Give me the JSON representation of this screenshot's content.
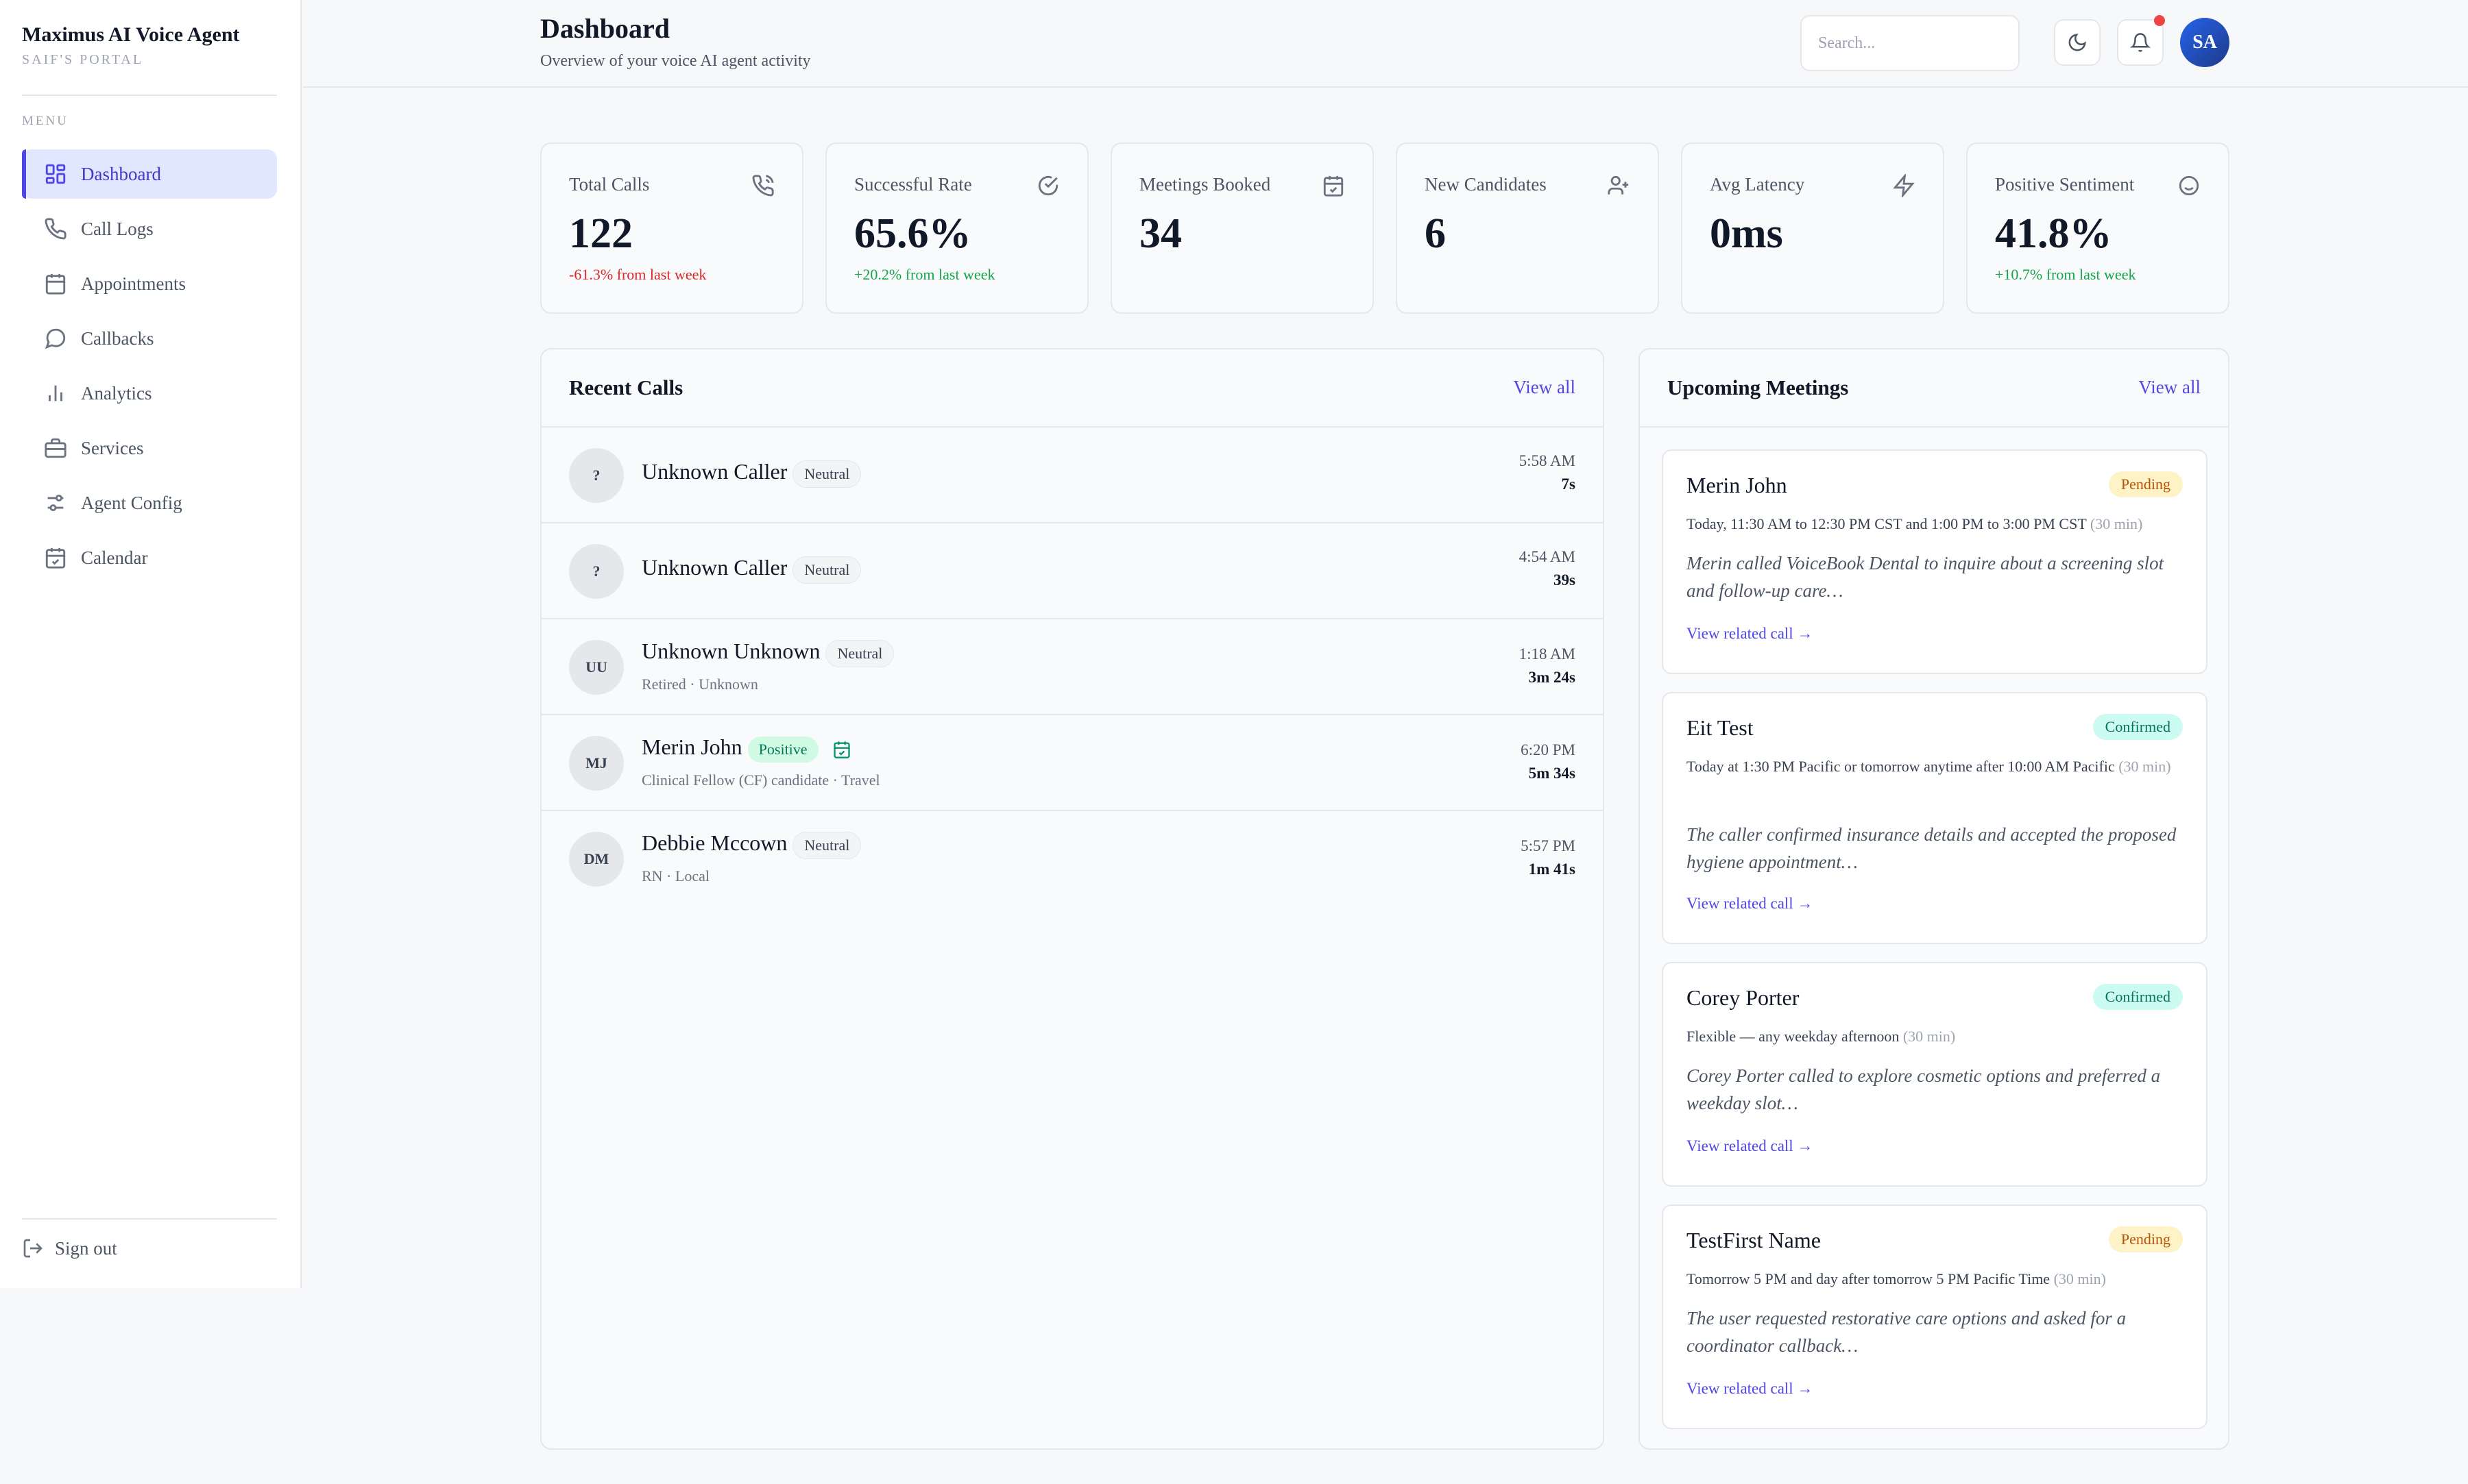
{
  "brand": {
    "title": "Maximus AI Voice Agent",
    "subtitle": "SAIF'S PORTAL"
  },
  "sidebar": {
    "menu_label": "MENU",
    "items": [
      {
        "label": "Dashboard",
        "icon": "dashboard-icon",
        "active": true
      },
      {
        "label": "Call Logs",
        "icon": "phone-icon"
      },
      {
        "label": "Appointments",
        "icon": "calendar-icon"
      },
      {
        "label": "Callbacks",
        "icon": "chat-icon"
      },
      {
        "label": "Analytics",
        "icon": "bar-chart-icon"
      },
      {
        "label": "Services",
        "icon": "briefcase-icon"
      },
      {
        "label": "Agent Config",
        "icon": "sliders-icon"
      },
      {
        "label": "Calendar",
        "icon": "calendar-check-icon"
      }
    ],
    "signout_label": "Sign out"
  },
  "header": {
    "title": "Dashboard",
    "subtitle": "Overview of your voice AI agent activity",
    "search_placeholder": "Search...",
    "avatar_initials": "SA"
  },
  "stats": [
    {
      "label": "Total Calls",
      "value": "122",
      "change": "-61.3% from last week",
      "trend": "negative",
      "icon": "phone-call-icon"
    },
    {
      "label": "Successful Rate",
      "value": "65.6%",
      "change": "+20.2% from last week",
      "trend": "positive",
      "icon": "check-circle-icon"
    },
    {
      "label": "Meetings Booked",
      "value": "34",
      "change": "",
      "trend": "none",
      "icon": "calendar-check-icon"
    },
    {
      "label": "New Candidates",
      "value": "6",
      "change": "",
      "trend": "none",
      "icon": "user-plus-icon"
    },
    {
      "label": "Avg Latency",
      "value": "0ms",
      "change": "",
      "trend": "none",
      "icon": "lightning-icon"
    },
    {
      "label": "Positive Sentiment",
      "value": "41.8%",
      "change": "+10.7% from last week",
      "trend": "positive",
      "icon": "smile-icon"
    }
  ],
  "recent_calls": {
    "title": "Recent Calls",
    "view_all": "View all",
    "rows": [
      {
        "initials": "?",
        "name": "Unknown Caller",
        "sentiment": "Neutral",
        "sub": "",
        "time": "5:58 AM",
        "duration": "7s"
      },
      {
        "initials": "?",
        "name": "Unknown Caller",
        "sentiment": "Neutral",
        "sub": "",
        "time": "4:54 AM",
        "duration": "39s"
      },
      {
        "initials": "UU",
        "name": "Unknown Unknown",
        "sentiment": "Neutral",
        "sub": "Retired · Unknown",
        "time": "1:18 AM",
        "duration": "3m 24s"
      },
      {
        "initials": "MJ",
        "name": "Merin John",
        "sentiment": "Positive",
        "sub": "Clinical Fellow (CF) candidate · Travel",
        "time": "6:20 PM",
        "duration": "5m 34s",
        "booked": true
      },
      {
        "initials": "DM",
        "name": "Debbie Mccown",
        "sentiment": "Neutral",
        "sub": "RN · Local",
        "time": "5:57 PM",
        "duration": "1m 41s"
      }
    ]
  },
  "upcoming_meetings": {
    "title": "Upcoming Meetings",
    "view_all": "View all",
    "link_label": "View related call →",
    "cards": [
      {
        "name": "Merin John",
        "status": "Pending",
        "time": "Today, 11:30 AM to 12:30 PM CST and 1:00 PM to 3:00 PM CST",
        "duration": "(30 min)",
        "summary": "Merin called VoiceBook Dental to inquire about a screening slot and follow-up care…"
      },
      {
        "name": "Eit Test",
        "status": "Confirmed",
        "time": "Today at 1:30 PM Pacific or tomorrow anytime after 10:00 AM Pacific",
        "duration": "(30 min)",
        "summary": "The caller confirmed insurance details and accepted the proposed hygiene appointment…"
      },
      {
        "name": "Corey Porter",
        "status": "Confirmed",
        "time": "Flexible — any weekday afternoon",
        "duration": "(30 min)",
        "summary": "Corey Porter called to explore cosmetic options and preferred a weekday slot…"
      },
      {
        "name": "TestFirst Name",
        "status": "Pending",
        "time": "Tomorrow 5 PM and day after tomorrow 5 PM Pacific Time",
        "duration": "(30 min)",
        "summary": "The user requested restorative care options and asked for a coordinator callback…"
      }
    ]
  },
  "colors": {
    "accent": "#4f46e5",
    "negative": "#dc2626",
    "positive": "#16a34a",
    "notification": "#ef4444"
  }
}
